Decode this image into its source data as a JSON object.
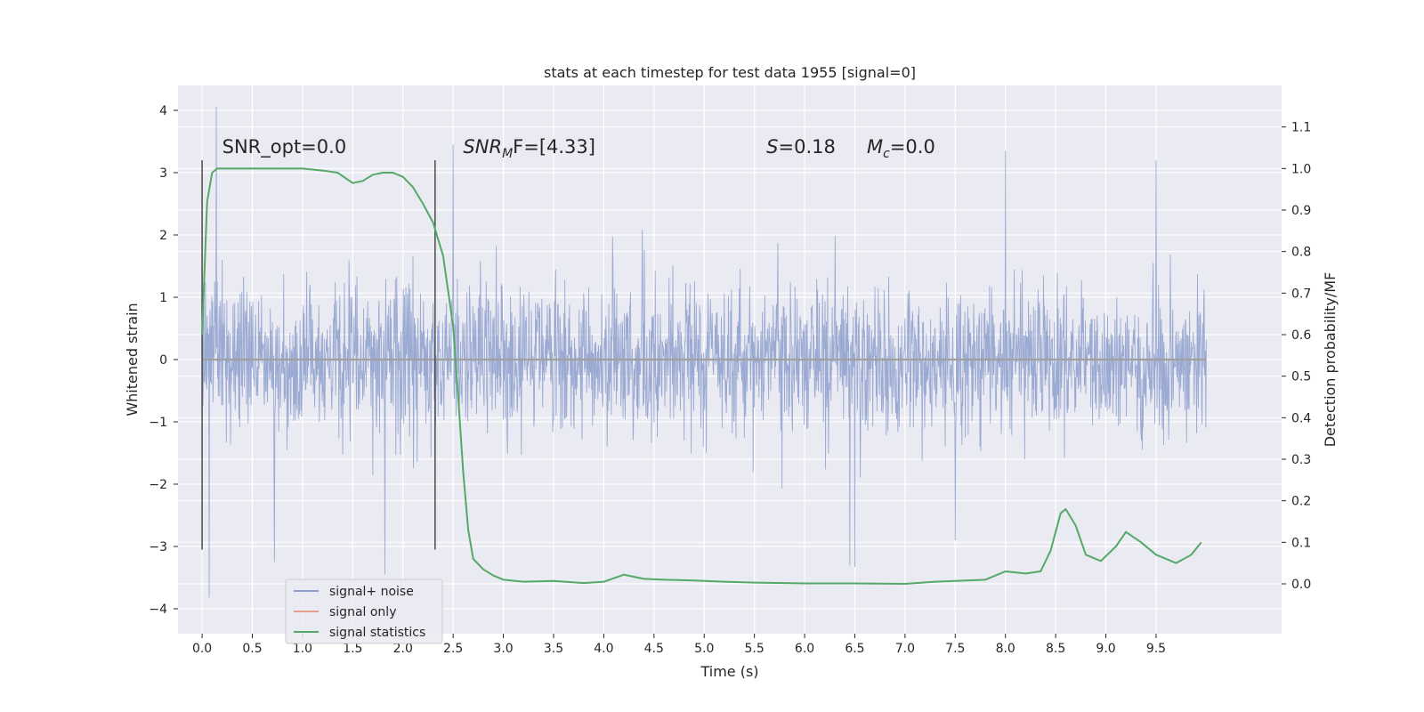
{
  "chart_data": {
    "type": "line",
    "title": "stats at each timestep for test data 1955 [signal=0]",
    "xlabel": "Time (s)",
    "ylabel": "Whitened strain",
    "y2label": "Detection probability/MF",
    "xlim": [
      -0.24,
      10.75
    ],
    "ylim": [
      -4.4,
      4.4
    ],
    "y2lim": [
      -0.12,
      1.2
    ],
    "xticks": [
      0.0,
      0.5,
      1.0,
      1.5,
      2.0,
      2.5,
      3.0,
      3.5,
      4.0,
      4.5,
      5.0,
      5.5,
      6.0,
      6.5,
      7.0,
      7.5,
      8.0,
      8.5,
      9.0,
      9.5
    ],
    "xtick_labels": [
      "0.0",
      "0.5",
      "1.0",
      "1.5",
      "2.0",
      "2.5",
      "3.0",
      "3.5",
      "4.0",
      "4.5",
      "5.0",
      "5.5",
      "6.0",
      "6.5",
      "7.0",
      "7.5",
      "8.0",
      "8.5",
      "9.0",
      "9.5"
    ],
    "yticks": [
      -4,
      -3,
      -2,
      -1,
      0,
      1,
      2,
      3,
      4
    ],
    "ytick_labels": [
      "−4",
      "−3",
      "−2",
      "−1",
      "0",
      "1",
      "2",
      "3",
      "4"
    ],
    "y2ticks": [
      0.0,
      0.1,
      0.2,
      0.3,
      0.4,
      0.5,
      0.6,
      0.7,
      0.8,
      0.9,
      1.0,
      1.1
    ],
    "y2tick_labels": [
      "0.0",
      "0.1",
      "0.2",
      "0.3",
      "0.4",
      "0.5",
      "0.6",
      "0.7",
      "0.8",
      "0.9",
      "1.0",
      "1.1"
    ],
    "grid": true,
    "legend_position": "lower-left",
    "vertical_lines": [
      {
        "x": 0.0,
        "y_range": [
          -3.05,
          3.2
        ]
      },
      {
        "x": 2.32,
        "y_range": [
          -3.05,
          3.2
        ]
      }
    ],
    "annotations": [
      {
        "id": "snr-opt",
        "x": 0.2,
        "y": 3.2,
        "text": "SNR_opt=0.0"
      },
      {
        "id": "snr-mf",
        "x": 2.6,
        "y": 3.2,
        "prefix": "SNR",
        "sub": "M",
        "suffix": "F=[4.33]"
      },
      {
        "id": "s-stat",
        "x": 5.62,
        "y": 3.2,
        "prefix": "S",
        "suffix": "=0.18"
      },
      {
        "id": "mc",
        "x": 6.62,
        "y": 3.2,
        "prefix": "M",
        "sub": "c",
        "suffix": "=0.0"
      }
    ],
    "series": [
      {
        "name": "signal+ noise",
        "axis": "left",
        "color": "#8c9fcd",
        "x_range": [
          0.0,
          10.0
        ],
        "noise": {
          "sigma": 0.62,
          "extremes": [
            {
              "x": 0.14,
              "y": 4.05
            },
            {
              "x": 0.07,
              "y": -3.82
            },
            {
              "x": 0.72,
              "y": -3.25
            },
            {
              "x": 1.82,
              "y": -3.45
            },
            {
              "x": 2.5,
              "y": 3.45
            },
            {
              "x": 6.45,
              "y": -3.3
            },
            {
              "x": 6.5,
              "y": -3.33
            },
            {
              "x": 7.5,
              "y": -2.9
            },
            {
              "x": 8.0,
              "y": 3.35
            },
            {
              "x": 9.5,
              "y": 3.2
            }
          ]
        }
      },
      {
        "name": "signal only",
        "axis": "left",
        "color": "#dd8452",
        "x": [
          0.0,
          10.0
        ],
        "y": [
          0.0,
          0.0
        ]
      },
      {
        "name": "signal statistics",
        "axis": "right",
        "color": "#55a868",
        "x": [
          0.0,
          0.05,
          0.1,
          0.15,
          0.25,
          0.5,
          0.8,
          1.0,
          1.2,
          1.35,
          1.5,
          1.6,
          1.7,
          1.8,
          1.9,
          2.0,
          2.1,
          2.2,
          2.3,
          2.4,
          2.5,
          2.55,
          2.6,
          2.65,
          2.7,
          2.8,
          2.9,
          3.0,
          3.2,
          3.5,
          3.8,
          4.0,
          4.2,
          4.4,
          4.6,
          4.9,
          5.2,
          5.5,
          6.0,
          6.5,
          7.0,
          7.3,
          7.5,
          7.8,
          8.0,
          8.2,
          8.35,
          8.45,
          8.55,
          8.6,
          8.7,
          8.8,
          8.95,
          9.1,
          9.2,
          9.35,
          9.5,
          9.7,
          9.85,
          9.95
        ],
        "y": [
          0.6,
          0.92,
          0.99,
          1.0,
          1.0,
          1.0,
          1.0,
          1.0,
          0.995,
          0.99,
          0.965,
          0.97,
          0.985,
          0.99,
          0.99,
          0.98,
          0.955,
          0.915,
          0.87,
          0.79,
          0.62,
          0.45,
          0.27,
          0.13,
          0.06,
          0.035,
          0.02,
          0.01,
          0.005,
          0.007,
          0.002,
          0.005,
          0.022,
          0.012,
          0.01,
          0.008,
          0.005,
          0.003,
          0.001,
          0.001,
          0.0,
          0.005,
          0.007,
          0.01,
          0.03,
          0.025,
          0.03,
          0.08,
          0.17,
          0.18,
          0.14,
          0.07,
          0.055,
          0.09,
          0.125,
          0.1,
          0.07,
          0.05,
          0.07,
          0.1
        ]
      }
    ]
  }
}
